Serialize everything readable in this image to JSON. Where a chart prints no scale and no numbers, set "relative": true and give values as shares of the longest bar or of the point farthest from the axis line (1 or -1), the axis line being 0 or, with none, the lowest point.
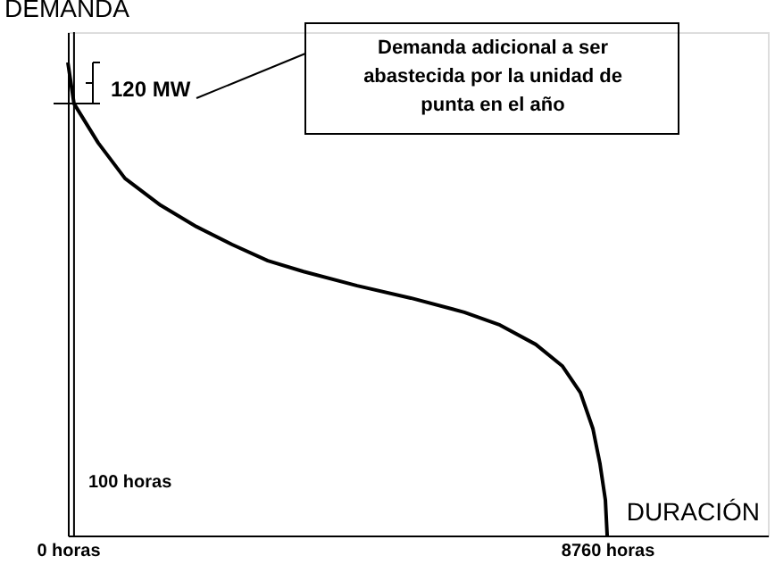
{
  "chart_data": {
    "type": "line",
    "relative": true,
    "xlabel": "DURACIÓN",
    "ylabel": "DEMANDA",
    "x": [
      0,
      100,
      493,
      928,
      1508,
      2088,
      2668,
      3248,
      3828,
      4699,
      5569,
      6439,
      7019,
      7600,
      8035,
      8325,
      8528,
      8644,
      8731,
      8760
    ],
    "series": [
      {
        "color": "#000000",
        "values": [
          1.0,
          0.913,
          0.83,
          0.755,
          0.698,
          0.653,
          0.615,
          0.581,
          0.558,
          0.528,
          0.502,
          0.472,
          0.445,
          0.404,
          0.358,
          0.302,
          0.226,
          0.151,
          0.075,
          0.0
        ]
      }
    ],
    "xlim": [
      0,
      11370
    ],
    "xticks": [
      {
        "value": 0,
        "label": "0 horas"
      },
      {
        "value": 8760,
        "label": "8760 horas"
      }
    ],
    "ref_lines": [
      {
        "axis": "x",
        "value": 100,
        "label": "100 horas",
        "color": "#000000"
      }
    ],
    "annotations": [
      "120 MW",
      "Demanda adicional a ser abastecida por la unidad de punta en el año"
    ],
    "grid": false,
    "marker": "none",
    "line_style": "solid"
  }
}
